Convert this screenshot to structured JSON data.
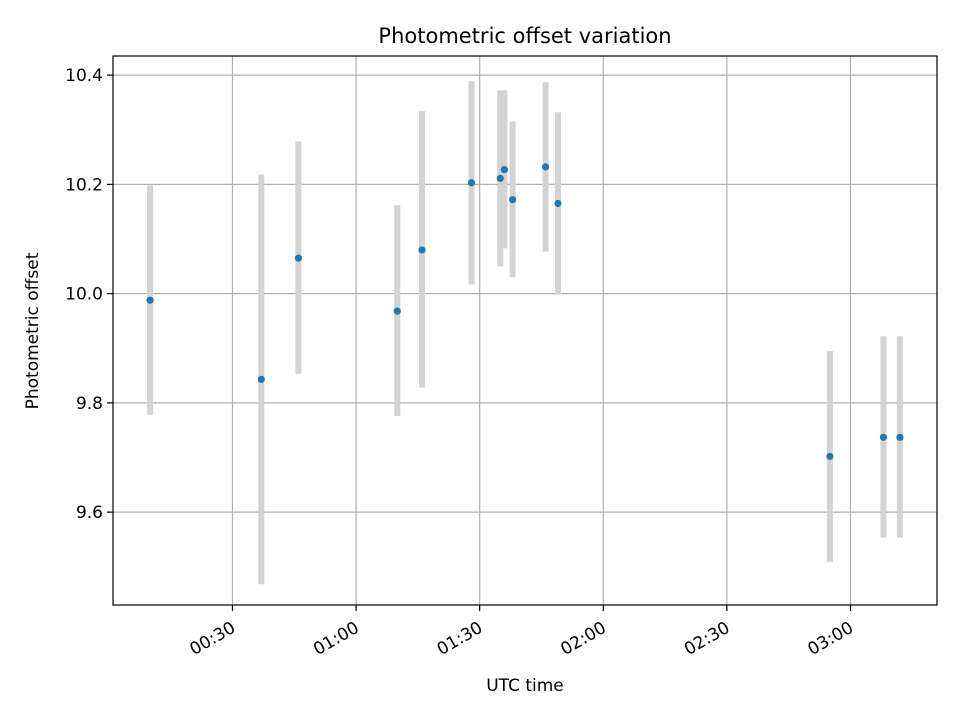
{
  "chart_data": {
    "type": "scatter",
    "title": "Photometric offset variation",
    "xlabel": "UTC time",
    "ylabel": "Photometric offset",
    "xlim": [
      "00:01",
      "03:21"
    ],
    "ylim": [
      9.43,
      10.435
    ],
    "x_ticks": [
      "00:30",
      "01:00",
      "01:30",
      "02:00",
      "02:30",
      "03:00"
    ],
    "y_ticks": [
      9.6,
      9.8,
      10.0,
      10.2,
      10.4
    ],
    "grid": true,
    "marker_color": "#1f77b4",
    "errorbar_color": "#d3d3d3",
    "points": [
      {
        "time": "00:10",
        "value": 9.988,
        "err_low": 9.778,
        "err_high": 10.198
      },
      {
        "time": "00:37",
        "value": 9.843,
        "err_low": 9.468,
        "err_high": 10.218
      },
      {
        "time": "00:46",
        "value": 10.065,
        "err_low": 9.853,
        "err_high": 10.279
      },
      {
        "time": "01:10",
        "value": 9.968,
        "err_low": 9.776,
        "err_high": 10.162
      },
      {
        "time": "01:16",
        "value": 10.08,
        "err_low": 9.828,
        "err_high": 10.334
      },
      {
        "time": "01:28",
        "value": 10.203,
        "err_low": 10.017,
        "err_high": 10.389
      },
      {
        "time": "01:35",
        "value": 10.211,
        "err_low": 10.05,
        "err_high": 10.372
      },
      {
        "time": "01:36",
        "value": 10.227,
        "err_low": 10.083,
        "err_high": 10.372
      },
      {
        "time": "01:38",
        "value": 10.172,
        "err_low": 10.03,
        "err_high": 10.315
      },
      {
        "time": "01:46",
        "value": 10.232,
        "err_low": 10.077,
        "err_high": 10.387
      },
      {
        "time": "01:49",
        "value": 10.165,
        "err_low": 9.998,
        "err_high": 10.332
      },
      {
        "time": "02:55",
        "value": 9.702,
        "err_low": 9.509,
        "err_high": 9.895
      },
      {
        "time": "03:08",
        "value": 9.737,
        "err_low": 9.553,
        "err_high": 9.922
      },
      {
        "time": "03:12",
        "value": 9.737,
        "err_low": 9.553,
        "err_high": 9.922
      }
    ]
  }
}
